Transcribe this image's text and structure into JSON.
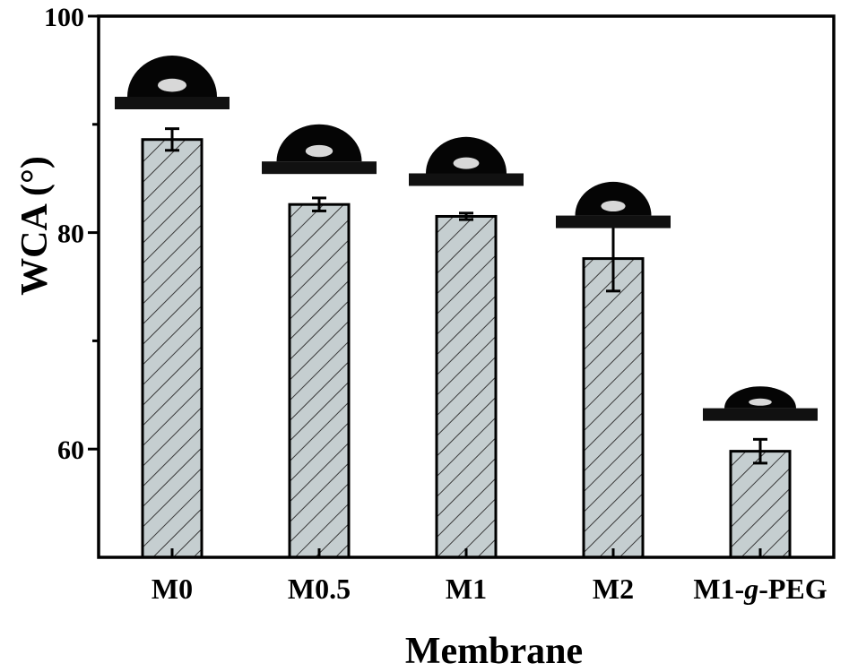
{
  "chart_data": {
    "type": "bar",
    "categories": [
      "M0",
      "M0.5",
      "M1",
      "M2",
      "M1-g-PEG"
    ],
    "category_labels": [
      {
        "parts": [
          {
            "text": "M0",
            "italic": false
          }
        ]
      },
      {
        "parts": [
          {
            "text": "M0.5",
            "italic": false
          }
        ]
      },
      {
        "parts": [
          {
            "text": "M1",
            "italic": false
          }
        ]
      },
      {
        "parts": [
          {
            "text": "M2",
            "italic": false
          }
        ]
      },
      {
        "parts": [
          {
            "text": "M1-",
            "italic": false
          },
          {
            "text": "g",
            "italic": true
          },
          {
            "text": "-PEG",
            "italic": false
          }
        ]
      }
    ],
    "values": [
      88.6,
      82.6,
      81.5,
      77.6,
      59.8
    ],
    "errors": [
      1.0,
      0.6,
      0.3,
      3.0,
      1.1
    ],
    "xlabel": "Membrane",
    "ylabel": "WCA (°)",
    "ylim": [
      50,
      100
    ],
    "yticks": [
      100,
      80,
      60
    ],
    "yticks_minor": [
      90,
      70
    ],
    "grid": false,
    "bar_fill": "#c5ced0",
    "bar_hatch": "diagonal",
    "droplet_color": "#050505",
    "substrate_color": "#111111",
    "droplet_icon": "water-droplet-icon"
  }
}
